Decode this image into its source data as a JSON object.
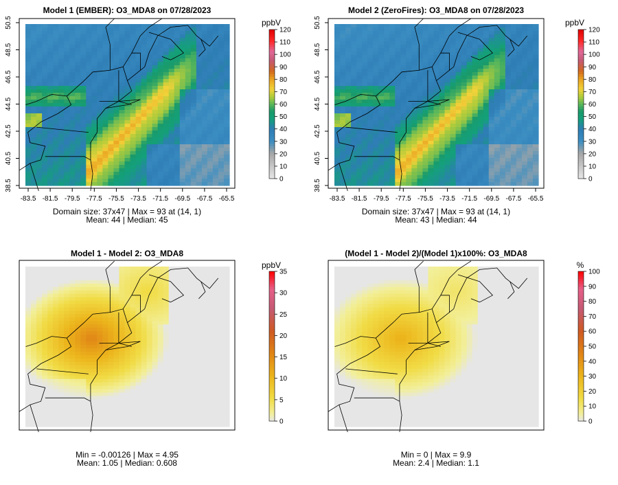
{
  "chart_data": [
    {
      "type": "heatmap",
      "title": "Model 1 (EMBER): O3_MDA8 on 07/28/2023",
      "x_ticks": [
        "-83.5",
        "-81.5",
        "-79.5",
        "-77.5",
        "-75.5",
        "-73.5",
        "-71.5",
        "-69.5",
        "-67.5",
        "-65.5"
      ],
      "y_ticks": [
        "38.5",
        "40.5",
        "42.5",
        "44.5",
        "46.5",
        "48.5",
        "50.5"
      ],
      "colorbar": {
        "unit": "ppbV",
        "ticks": [
          "0",
          "10",
          "20",
          "30",
          "40",
          "50",
          "60",
          "70",
          "80",
          "90",
          "100",
          "110",
          "120"
        ],
        "range": [
          0,
          120
        ],
        "palette": "ozone"
      },
      "stats_line1": "Domain size: 37x47 | Max = 93 at (14, 1)",
      "stats_line2": "Mean: 44 |  Median: 45",
      "domain_size": [
        37,
        47
      ],
      "max": 93,
      "max_at": [
        14,
        1
      ],
      "mean": 44,
      "median": 45
    },
    {
      "type": "heatmap",
      "title": "Model 2 (ZeroFires): O3_MDA8 on 07/28/2023",
      "x_ticks": [
        "-83.5",
        "-81.5",
        "-79.5",
        "-77.5",
        "-75.5",
        "-73.5",
        "-71.5",
        "-69.5",
        "-67.5",
        "-65.5"
      ],
      "y_ticks": [
        "38.5",
        "40.5",
        "42.5",
        "44.5",
        "46.5",
        "48.5",
        "50.5"
      ],
      "colorbar": {
        "unit": "ppbV",
        "ticks": [
          "0",
          "10",
          "20",
          "30",
          "40",
          "50",
          "60",
          "70",
          "80",
          "90",
          "100",
          "110",
          "120"
        ],
        "range": [
          0,
          120
        ],
        "palette": "ozone"
      },
      "stats_line1": "Domain size: 37x47 | Max = 93 at (14, 1)",
      "stats_line2": "Mean: 43 |  Median: 44",
      "domain_size": [
        37,
        47
      ],
      "max": 93,
      "max_at": [
        14,
        1
      ],
      "mean": 43,
      "median": 44
    },
    {
      "type": "heatmap",
      "title": "Model 1 - Model 2: O3_MDA8",
      "x_ticks": [],
      "y_ticks": [],
      "colorbar": {
        "unit": "ppbV",
        "ticks": [
          "0",
          "5",
          "10",
          "15",
          "20",
          "25",
          "30",
          "35"
        ],
        "range": [
          0,
          35
        ],
        "palette": "diff"
      },
      "stats_line1": "Min = -0.00126 | Max = 4.95",
      "stats_line2": "Mean: 1.05 |  Median: 0.608",
      "min": -0.00126,
      "max": 4.95,
      "mean": 1.05,
      "median": 0.608
    },
    {
      "type": "heatmap",
      "title": "(Model 1 - Model 2)/(Model 1)x100%: O3_MDA8",
      "x_ticks": [],
      "y_ticks": [],
      "colorbar": {
        "unit": "%",
        "ticks": [
          "0",
          "10",
          "20",
          "30",
          "40",
          "50",
          "60",
          "70",
          "80",
          "90",
          "100"
        ],
        "range": [
          0,
          100
        ],
        "palette": "diff"
      },
      "stats_line1": "Min = 0 | Max = 9.9",
      "stats_line2": "Mean: 2.4 |  Median: 1.1",
      "min": 0,
      "max": 9.9,
      "mean": 2.4,
      "median": 1.1
    }
  ]
}
